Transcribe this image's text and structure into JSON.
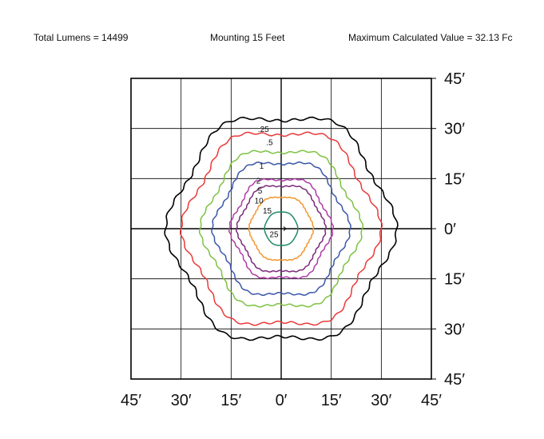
{
  "header": {
    "total_lumens": "Total Lumens = 14499",
    "mounting": "Mounting 15 Feet",
    "max_value": "Maximum Calculated Value = 32.13 Fc"
  },
  "chart_data": {
    "type": "isofootcandle",
    "title": "",
    "xlim": [
      -45,
      45
    ],
    "ylim": [
      -45,
      45
    ],
    "grid_step": 15,
    "x_tick_labels": [
      "45′",
      "30′",
      "15′",
      "0′",
      "15′",
      "30′",
      "45′"
    ],
    "y_tick_labels": [
      "45′",
      "30′",
      "15′",
      "0′",
      "15′",
      "30′",
      "45′"
    ],
    "contours": [
      {
        "level": 0.25,
        "label": ".25",
        "color": "#000000",
        "radius": 33.5
      },
      {
        "level": 0.5,
        "label": ".5",
        "color": "#e83a3a",
        "radius": 29.0
      },
      {
        "level": 1,
        "label": "1",
        "color": "#7dc242",
        "radius": 23.5
      },
      {
        "level": 2,
        "label": "2",
        "color": "#3a56a8",
        "radius": 20.0
      },
      {
        "level": 5,
        "label": "5",
        "color": "#b03aa8",
        "radius": 15.0
      },
      {
        "level": 10,
        "label": "10",
        "color": "#7a2a7a",
        "radius": 13.0
      },
      {
        "level": 15,
        "label": "15",
        "color": "#f2962e",
        "radius": 9.5
      },
      {
        "level": 25,
        "label": "25",
        "color": "#1f8a6a",
        "radius": 5.0
      }
    ]
  }
}
